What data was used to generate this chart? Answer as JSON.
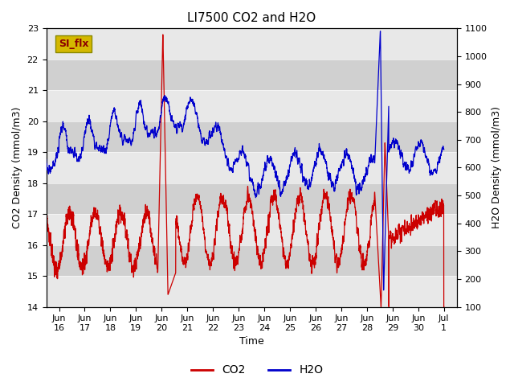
{
  "title": "LI7500 CO2 and H2O",
  "xlabel": "Time",
  "ylabel_left": "CO2 Density (mmol/m3)",
  "ylabel_right": "H2O Density (mmol/m3)",
  "ylim_left": [
    14.0,
    23.0
  ],
  "ylim_right": [
    100,
    1100
  ],
  "yticks_left": [
    14.0,
    15.0,
    16.0,
    17.0,
    18.0,
    19.0,
    20.0,
    21.0,
    22.0,
    23.0
  ],
  "yticks_right": [
    100,
    200,
    300,
    400,
    500,
    600,
    700,
    800,
    900,
    1000,
    1100
  ],
  "xtick_labels": [
    "Jun 16",
    "Jun 17",
    "Jun 18",
    "Jun 19",
    "Jun 20",
    "Jun 21",
    "Jun 22",
    "Jun 23",
    "Jun 24",
    "Jun 25",
    "Jun 26",
    "Jun 27",
    "Jun 28",
    "Jun 29",
    "Jun 30",
    "Jul 1"
  ],
  "annotation_text": "SI_flx",
  "annotation_facecolor": "#d4b800",
  "annotation_edgecolor": "#888800",
  "annotation_textcolor": "#8b0000",
  "bg_color": "#d0d0d0",
  "band_light": "#e8e8e8",
  "band_dark": "#c8c8c8",
  "co2_color": "#cc0000",
  "h2o_color": "#0000cc",
  "legend_co2": "CO2",
  "legend_h2o": "H2O",
  "title_fontsize": 11,
  "axis_label_fontsize": 9,
  "tick_fontsize": 8,
  "fig_facecolor": "#ffffff"
}
